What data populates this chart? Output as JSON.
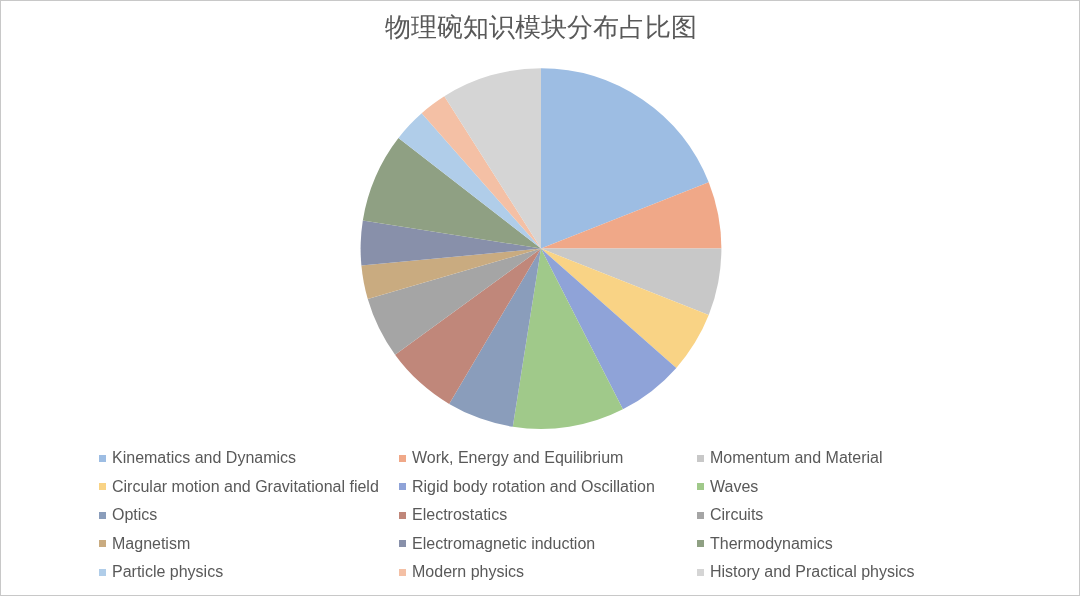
{
  "chart_data": {
    "type": "pie",
    "title": "物理碗知识模块分布占比图",
    "categories": [
      "Kinematics and Dynamics",
      "Work, Energy and Equilibrium",
      "Momentum and Material",
      "Circular motion and Gravitational field",
      "Rigid body rotation and Oscillation",
      "Waves",
      "Optics",
      "Electrostatics",
      "Circuits",
      "Magnetism",
      "Electromagnetic induction",
      "Thermodynamics",
      "Particle physics",
      "Modern physics",
      "History and Practical physics"
    ],
    "values": [
      19,
      6,
      6,
      5.5,
      6,
      10,
      6,
      6.5,
      5.5,
      3,
      4,
      8,
      3,
      2.5,
      9
    ],
    "colors": [
      "#9dbde3",
      "#f0a888",
      "#c8c8c8",
      "#f9d385",
      "#8fa3d8",
      "#a0c98a",
      "#8a9dbb",
      "#c0877a",
      "#a5a5a5",
      "#c9ab80",
      "#8890aa",
      "#8fa083",
      "#b0cde9",
      "#f4c0a5",
      "#d5d5d5"
    ],
    "legend": "bottom"
  }
}
